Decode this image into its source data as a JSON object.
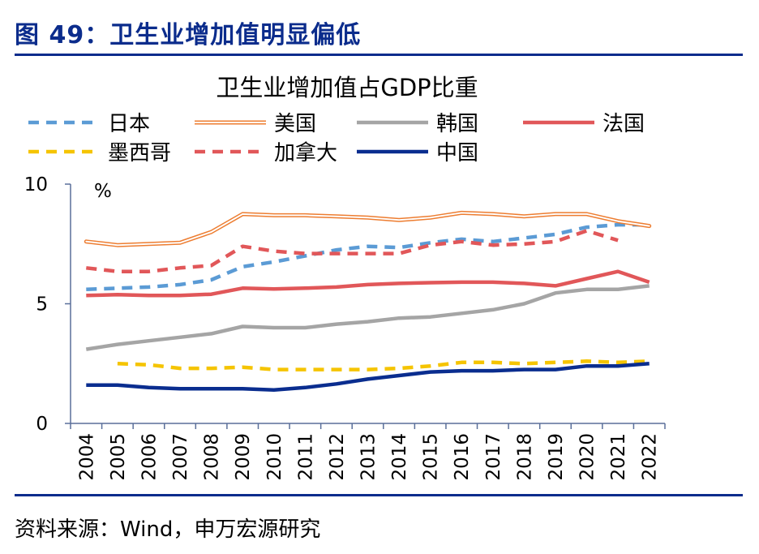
{
  "figure": {
    "title": "图 49：卫生业增加值明显偏低",
    "source": "资料来源：Wind，申万宏源研究"
  },
  "chart_data": {
    "type": "line",
    "title": "卫生业增加值占GDP比重",
    "ylabel": "%",
    "xlabel": "",
    "ylim": [
      0,
      10
    ],
    "yticks": [
      "0",
      "5",
      "10"
    ],
    "grid": false,
    "legend_position": "top",
    "categories": [
      "2004",
      "2005",
      "2006",
      "2007",
      "2008",
      "2009",
      "2010",
      "2011",
      "2012",
      "2013",
      "2014",
      "2015",
      "2016",
      "2017",
      "2018",
      "2019",
      "2020",
      "2021",
      "2022"
    ],
    "series": [
      {
        "name": "日本",
        "color": "#5b9bd5",
        "style": "dashed",
        "values": [
          5.6,
          5.65,
          5.7,
          5.8,
          6.0,
          6.55,
          6.75,
          7.0,
          7.25,
          7.4,
          7.35,
          7.55,
          7.7,
          7.6,
          7.75,
          7.9,
          8.2,
          8.3,
          8.3
        ]
      },
      {
        "name": "美国",
        "color": "#ed7d31",
        "style": "double",
        "values": [
          7.6,
          7.45,
          7.5,
          7.55,
          8.0,
          8.75,
          8.7,
          8.7,
          8.65,
          8.6,
          8.5,
          8.6,
          8.8,
          8.75,
          8.65,
          8.75,
          8.75,
          8.45,
          8.25
        ]
      },
      {
        "name": "韩国",
        "color": "#a5a5a5",
        "style": "solid",
        "values": [
          3.1,
          3.3,
          3.45,
          3.6,
          3.75,
          4.05,
          4.0,
          4.0,
          4.15,
          4.25,
          4.4,
          4.45,
          4.6,
          4.75,
          5.0,
          5.45,
          5.6,
          5.6,
          5.75
        ]
      },
      {
        "name": "法国",
        "color": "#e15759",
        "style": "solid",
        "values": [
          5.35,
          5.38,
          5.35,
          5.35,
          5.4,
          5.65,
          5.62,
          5.65,
          5.7,
          5.8,
          5.85,
          5.88,
          5.9,
          5.9,
          5.85,
          5.75,
          6.05,
          6.35,
          5.9
        ]
      },
      {
        "name": "墨西哥",
        "color": "#f5c400",
        "style": "dashed",
        "values": [
          null,
          2.5,
          2.45,
          2.3,
          2.3,
          2.35,
          2.25,
          2.25,
          2.25,
          2.25,
          2.3,
          2.4,
          2.55,
          2.55,
          2.5,
          2.55,
          2.6,
          2.55,
          2.6
        ]
      },
      {
        "name": "加拿大",
        "color": "#e15759",
        "style": "dashed",
        "values": [
          6.5,
          6.35,
          6.35,
          6.5,
          6.6,
          7.4,
          7.2,
          7.1,
          7.1,
          7.1,
          7.1,
          7.45,
          7.6,
          7.45,
          7.5,
          7.6,
          8.05,
          7.65,
          null
        ]
      },
      {
        "name": "中国",
        "color": "#0a2d8f",
        "style": "solid",
        "values": [
          1.6,
          1.6,
          1.5,
          1.45,
          1.45,
          1.45,
          1.4,
          1.5,
          1.65,
          1.85,
          2.0,
          2.15,
          2.2,
          2.2,
          2.25,
          2.25,
          2.4,
          2.4,
          2.5
        ]
      }
    ]
  }
}
